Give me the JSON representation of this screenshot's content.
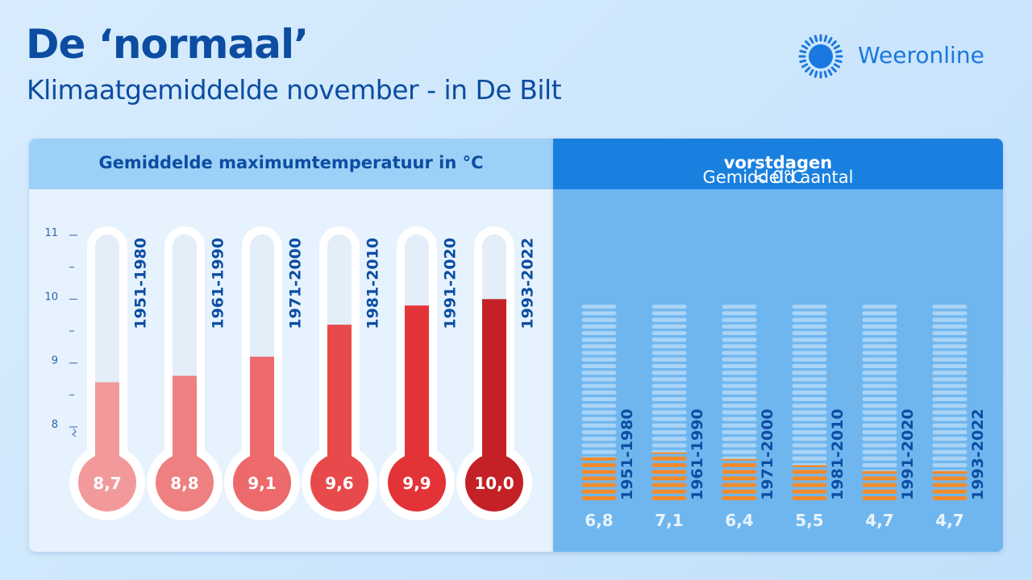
{
  "header": {
    "title": "De ‘normaal’",
    "subtitle": "Klimaatgemiddelde november - in De Bilt"
  },
  "logo": {
    "text": "Weeronline",
    "icon": "sun-icon"
  },
  "colors": {
    "brand_blue": "#0c4da2",
    "accent_blue": "#1a80e0",
    "frost_orange": "#f08a2c"
  },
  "chart_data": [
    {
      "type": "bar",
      "title": "Gemiddelde maximumtemperatuur in °C",
      "categories": [
        "1951-1980",
        "1961-1990",
        "1971-2000",
        "1981-2010",
        "1991-2020",
        "1993-2022"
      ],
      "values": [
        8.7,
        8.8,
        9.1,
        9.6,
        9.9,
        10.0
      ],
      "value_labels": [
        "8,7",
        "8,8",
        "9,1",
        "9,6",
        "9,9",
        "10,0"
      ],
      "ylim": [
        8,
        11
      ],
      "yticks": [
        "8",
        "9",
        "10",
        "11"
      ],
      "colors": [
        "#f29a9b",
        "#ee8082",
        "#ec6a6b",
        "#e84a4b",
        "#e43336",
        "#c32126"
      ]
    },
    {
      "type": "bar",
      "title_plain": "Gemiddeld aantal ",
      "title_bold": "vorstdagen",
      "title_tail": " < 0°C",
      "categories": [
        "1951-1980",
        "1961-1990",
        "1971-2000",
        "1981-2010",
        "1991-2020",
        "1993-2022"
      ],
      "values": [
        6.8,
        7.1,
        6.4,
        5.5,
        4.7,
        4.7
      ],
      "value_labels": [
        "6,8",
        "7,1",
        "6,4",
        "5,5",
        "4,7",
        "4,7"
      ],
      "ylim": [
        0,
        30
      ]
    }
  ]
}
